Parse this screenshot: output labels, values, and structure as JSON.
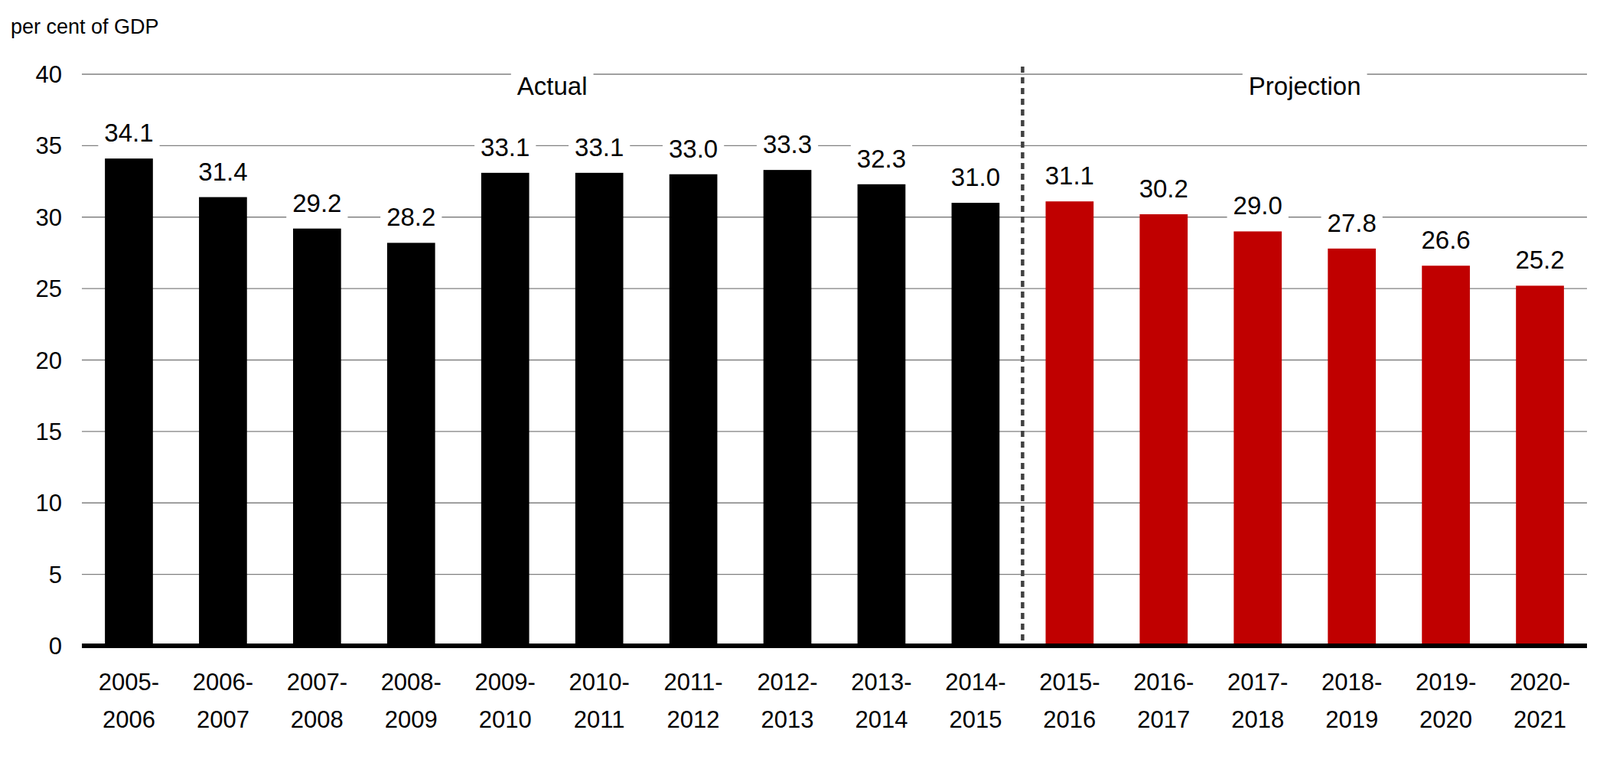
{
  "chart_data": {
    "type": "bar",
    "ylabel": "per cent of GDP",
    "categories": [
      "2005-2006",
      "2006-2007",
      "2007-2008",
      "2008-2009",
      "2009-2010",
      "2010-2011",
      "2011-2012",
      "2012-2013",
      "2013-2014",
      "2014-2015",
      "2015-2016",
      "2016-2017",
      "2017-2018",
      "2018-2019",
      "2019-2020",
      "2020-2021"
    ],
    "values": [
      34.1,
      31.4,
      29.2,
      28.2,
      33.1,
      33.1,
      33.0,
      33.3,
      32.3,
      31.0,
      31.1,
      30.2,
      29.0,
      27.8,
      26.6,
      25.2
    ],
    "value_labels": [
      "34.1",
      "31.4",
      "29.2",
      "28.2",
      "33.1",
      "33.1",
      "33.0",
      "33.3",
      "32.3",
      "31.0",
      "31.1",
      "30.2",
      "29.0",
      "27.8",
      "26.6",
      "25.2"
    ],
    "colors": [
      "#000000",
      "#000000",
      "#000000",
      "#000000",
      "#000000",
      "#000000",
      "#000000",
      "#000000",
      "#000000",
      "#000000",
      "#c00000",
      "#c00000",
      "#c00000",
      "#c00000",
      "#c00000",
      "#c00000"
    ],
    "annotations": [
      {
        "text": "Actual"
      },
      {
        "text": "Projection"
      }
    ],
    "ylim": [
      0,
      40
    ],
    "yticks": [
      0,
      5,
      10,
      15,
      20,
      25,
      30,
      35,
      40
    ],
    "grid": true,
    "data_labels": true
  }
}
